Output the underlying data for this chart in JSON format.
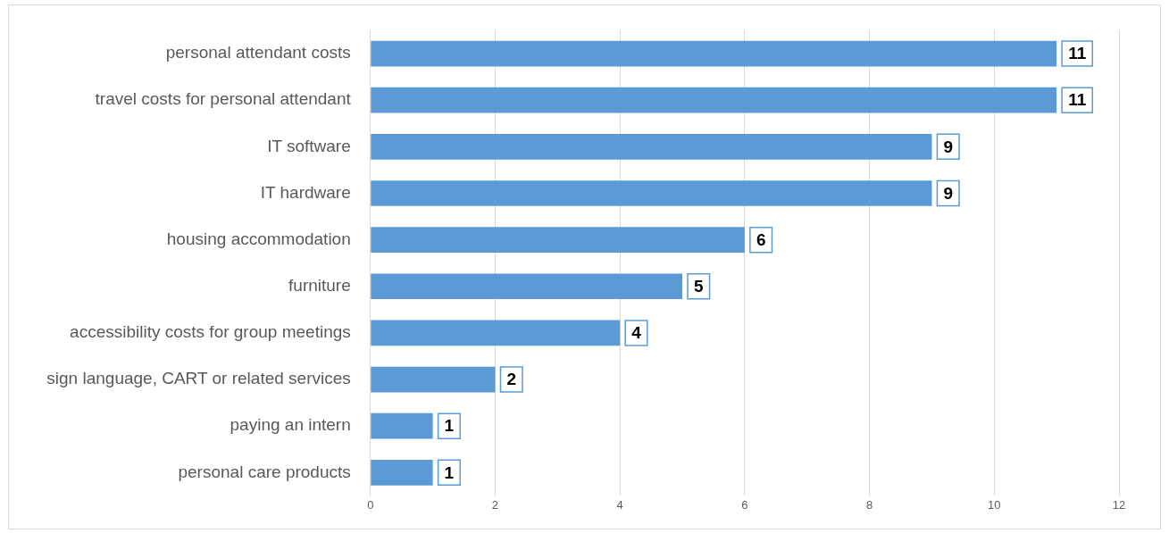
{
  "chart_data": {
    "type": "bar",
    "orientation": "horizontal",
    "categories": [
      "personal attendant costs",
      "travel costs for personal attendant",
      "IT software",
      "IT hardware",
      "housing accommodation",
      "furniture",
      "accessibility costs for group meetings",
      "sign language, CART or related services",
      "paying an intern",
      "personal care products"
    ],
    "values": [
      11,
      11,
      9,
      9,
      6,
      5,
      4,
      2,
      1,
      1
    ],
    "color": "#5b9bd5",
    "xlim": [
      0,
      12
    ],
    "xticks": [
      0,
      2,
      4,
      6,
      8,
      10,
      12
    ],
    "grid": "x",
    "legend": false,
    "data_labels": true
  }
}
